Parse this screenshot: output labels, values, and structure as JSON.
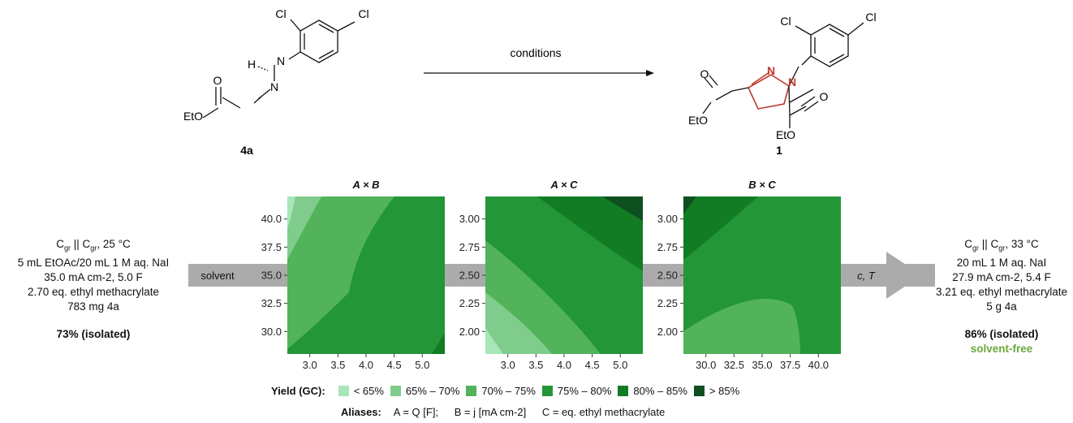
{
  "reaction": {
    "reactant_label": "4a",
    "product_label": "1",
    "arrow_label": "conditions",
    "reactant_atoms": {
      "cl1": "Cl",
      "cl2": "Cl",
      "h": "H",
      "n1": "N",
      "n2": "N",
      "o": "O",
      "eto": "EtO"
    },
    "product_atoms": {
      "cl1": "Cl",
      "cl2": "Cl",
      "n1": "N",
      "n2": "N",
      "o1": "O",
      "o2": "O",
      "eto1": "EtO",
      "eto2": "EtO"
    }
  },
  "left_conditions": {
    "line1": "Cgr || Cgr, 25 °C",
    "line2": "5 mL EtOAc/20 mL 1 M aq. NaI",
    "line3": "35.0 mA cm-2, 5.0 F",
    "line4": "2.70 eq. ethyl methacrylate",
    "line5": "783 mg 4a",
    "yield": "73% (isolated)"
  },
  "right_conditions": {
    "line1": "Cgr || Cgr, 33 °C",
    "line2": "20 mL 1 M aq. NaI",
    "line3": "27.9 mA cm-2, 5.4 F",
    "line4": "3.21 eq. ethyl methacrylate",
    "line5": "5 g 4a",
    "yield": "86% (isolated)",
    "note": "solvent-free"
  },
  "flow_labels": {
    "solvent": "solvent",
    "ct": "c, T"
  },
  "colors": {
    "lt65": "#a8e6b8",
    "c65_70": "#80cc8c",
    "c70_75": "#52b35a",
    "c75_80": "#239638",
    "c80_85": "#127c24",
    "gt85": "#0d4f1f",
    "arrow": "#ababab",
    "solvent_free": "#6aa83c",
    "red_ring": "#c0392b"
  },
  "legend": {
    "title": "Yield (GC):",
    "items": [
      "< 65%",
      "65% – 70%",
      "70% – 75%",
      "75% – 80%",
      "80% – 85%",
      "> 85%"
    ]
  },
  "aliases": {
    "label": "Aliases:",
    "a": "A = Q [F];",
    "b": "B = j [mA cm-2]",
    "c": "C = eq. ethyl methacrylate"
  },
  "chart_data": [
    {
      "type": "heatmap",
      "title": "A × B",
      "xticks": [
        "3.0",
        "3.5",
        "4.0",
        "4.5",
        "5.0"
      ],
      "yticks": [
        "30.0",
        "32.5",
        "35.0",
        "37.5",
        "40.0"
      ],
      "xlim": [
        2.6,
        5.4
      ],
      "ylim": [
        28.0,
        42.0
      ]
    },
    {
      "type": "heatmap",
      "title": "A × C",
      "xticks": [
        "3.0",
        "3.5",
        "4.0",
        "4.5",
        "5.0"
      ],
      "yticks": [
        "2.00",
        "2.25",
        "2.50",
        "2.75",
        "3.00"
      ],
      "xlim": [
        2.6,
        5.4
      ],
      "ylim": [
        1.8,
        3.2
      ]
    },
    {
      "type": "heatmap",
      "title": "B × C",
      "xticks": [
        "30.0",
        "32.5",
        "35.0",
        "37.5",
        "40.0"
      ],
      "yticks": [
        "2.00",
        "2.25",
        "2.50",
        "2.75",
        "3.00"
      ],
      "xlim": [
        28.0,
        42.0
      ],
      "ylim": [
        1.8,
        3.2
      ]
    }
  ]
}
